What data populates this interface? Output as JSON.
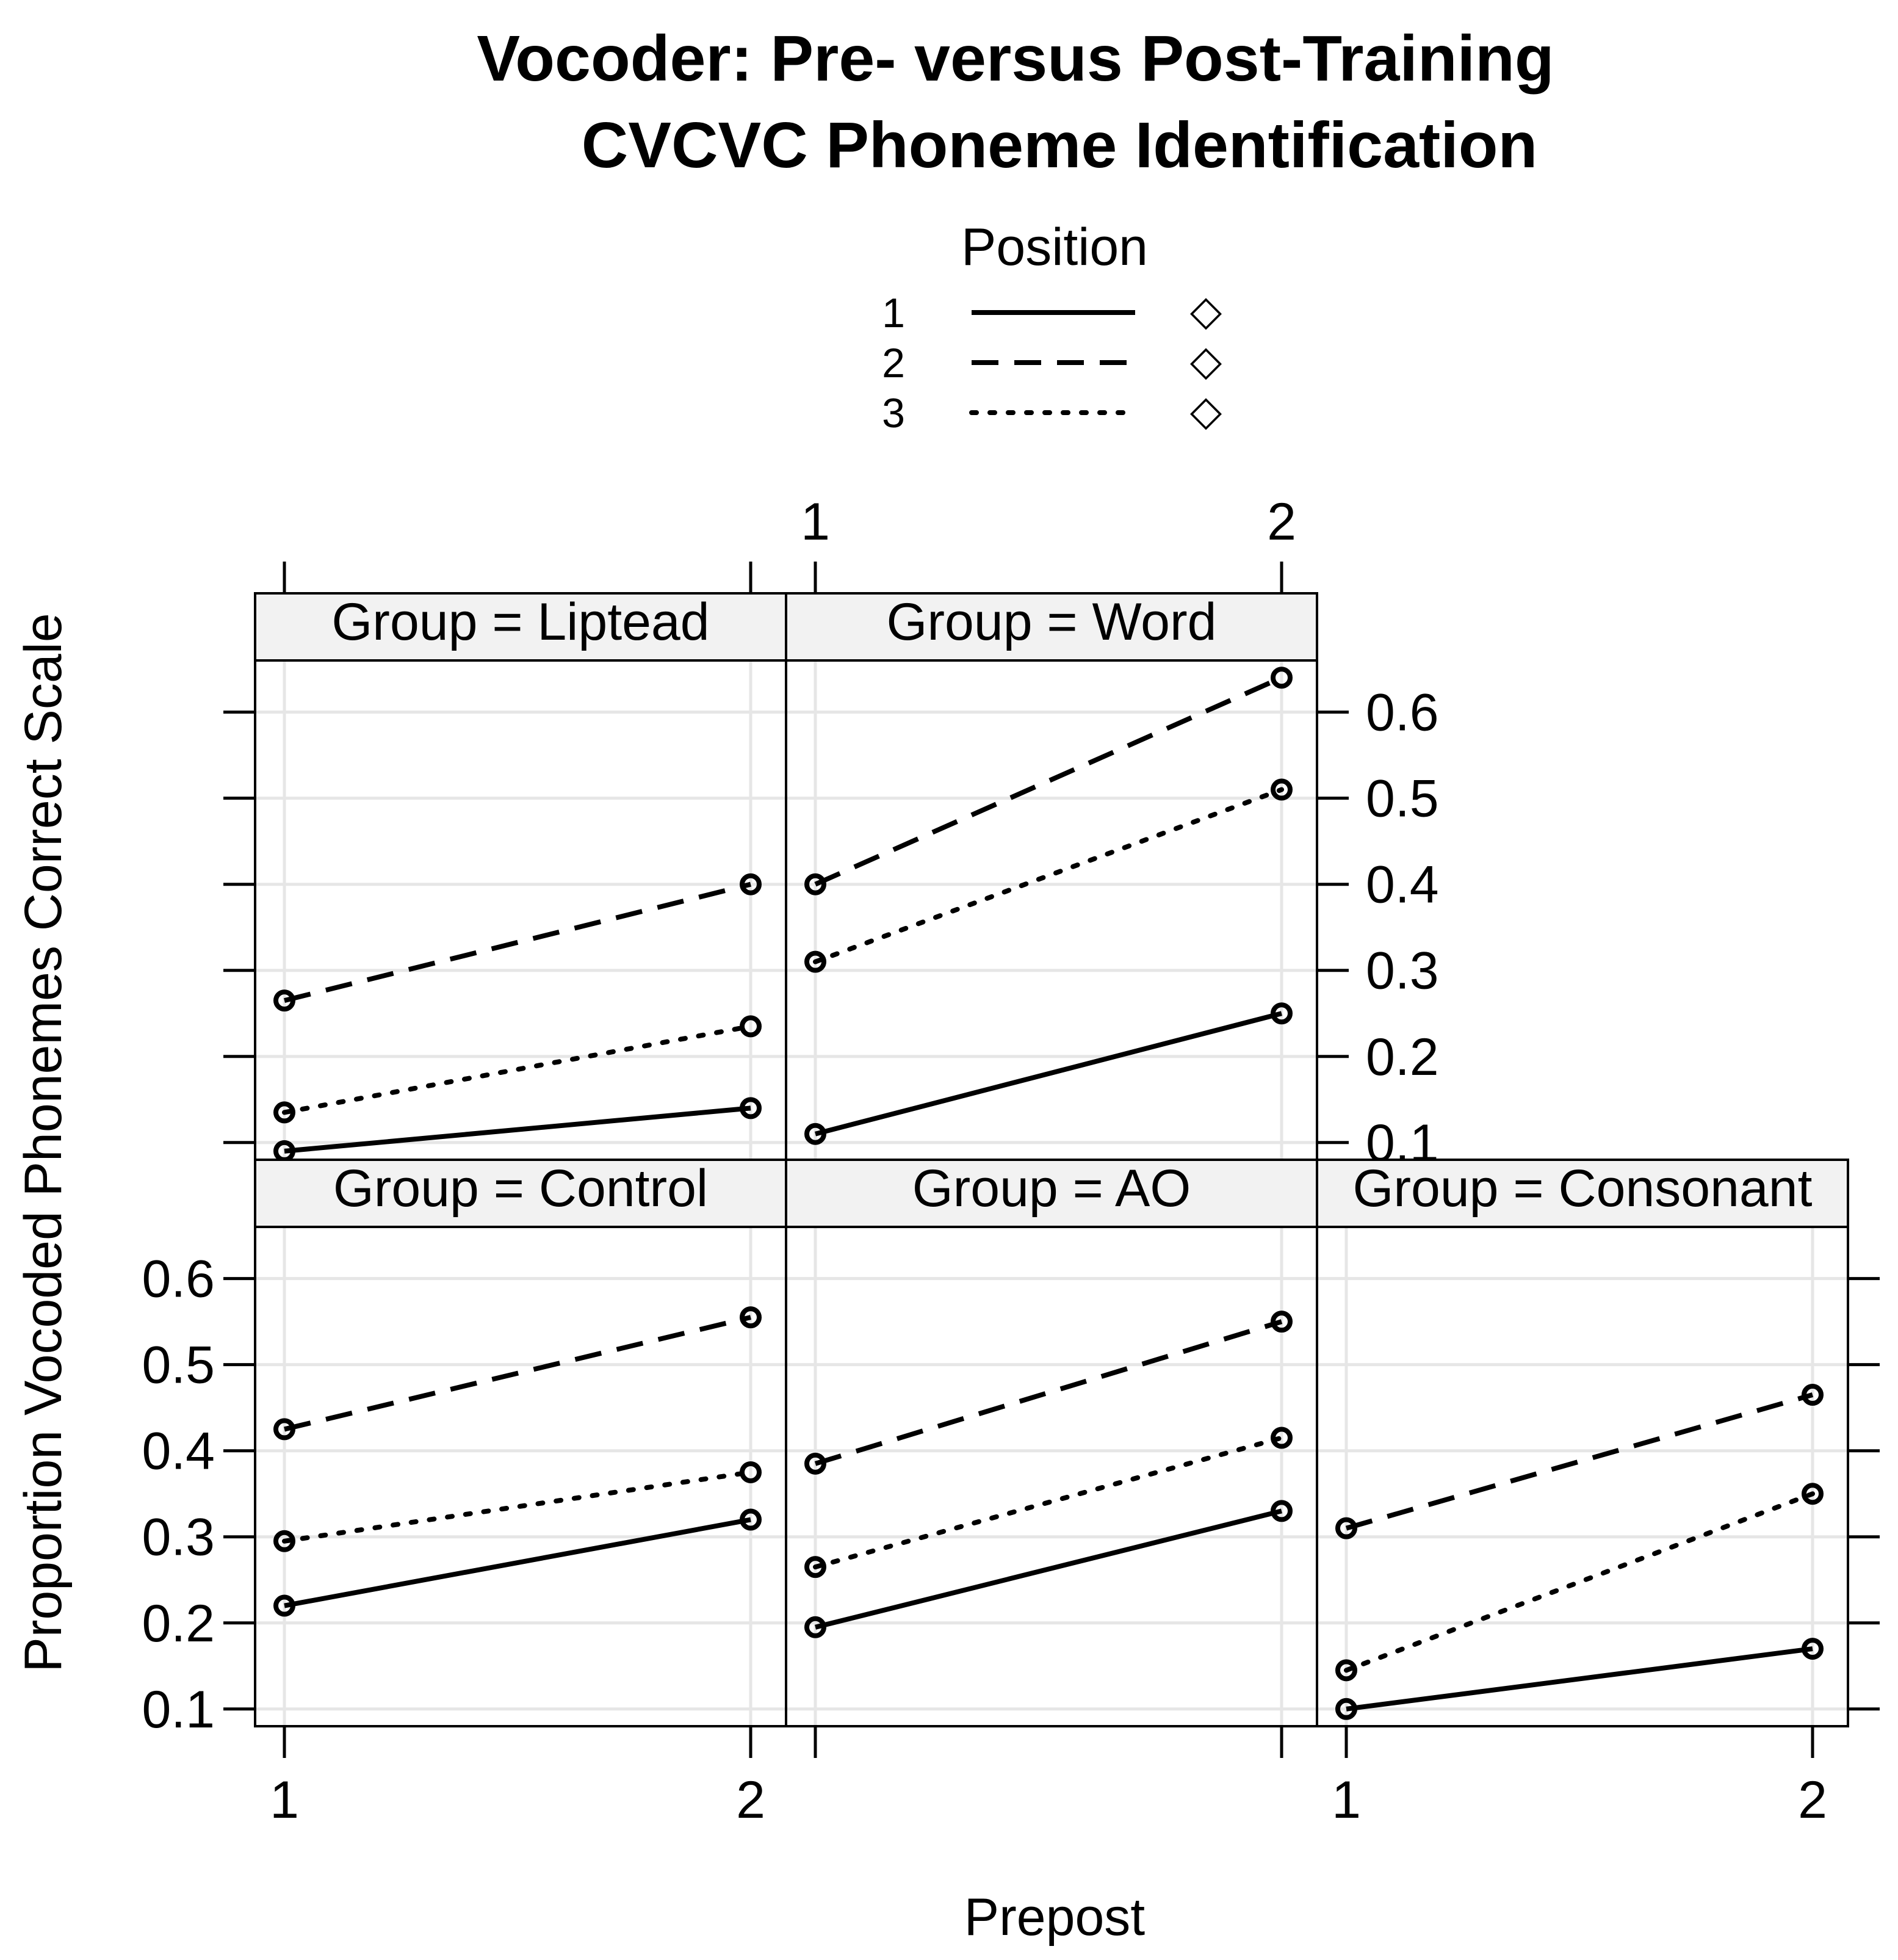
{
  "chart_data": {
    "type": "line",
    "title_lines": [
      "Vocoder: Pre- versus Post-Training",
      "CVCVC Phoneme Identification"
    ],
    "xlabel": "Prepost",
    "ylabel": "Proportion Vocoded Phonemes Correct Scale",
    "x": [
      1,
      2
    ],
    "x_tick_labels": [
      "1",
      "2"
    ],
    "ylim": [
      0.08,
      0.66
    ],
    "y_ticks": [
      0.1,
      0.2,
      0.3,
      0.4,
      0.5,
      0.6
    ],
    "y_tick_labels": [
      "0.1",
      "0.2",
      "0.3",
      "0.4",
      "0.5",
      "0.6"
    ],
    "grid": true,
    "legend": {
      "title": "Position",
      "placement": "top",
      "entries": [
        {
          "name": "1",
          "line": "solid",
          "symbol": "◇"
        },
        {
          "name": "2",
          "line": "dashed",
          "symbol": "◇"
        },
        {
          "name": "3",
          "line": "dotted",
          "symbol": "◇"
        }
      ]
    },
    "panels": [
      {
        "strip": "Group = Liptead",
        "series": [
          {
            "name": "1",
            "values": [
              0.09,
              0.14
            ]
          },
          {
            "name": "2",
            "values": [
              0.265,
              0.4
            ]
          },
          {
            "name": "3",
            "values": [
              0.135,
              0.235
            ]
          }
        ]
      },
      {
        "strip": "Group = Word",
        "series": [
          {
            "name": "1",
            "values": [
              0.11,
              0.25
            ]
          },
          {
            "name": "2",
            "values": [
              0.4,
              0.64
            ]
          },
          {
            "name": "3",
            "values": [
              0.31,
              0.51
            ]
          }
        ]
      },
      {
        "strip": "Group = Control",
        "series": [
          {
            "name": "1",
            "values": [
              0.22,
              0.32
            ]
          },
          {
            "name": "2",
            "values": [
              0.425,
              0.555
            ]
          },
          {
            "name": "3",
            "values": [
              0.295,
              0.375
            ]
          }
        ]
      },
      {
        "strip": "Group = AO",
        "series": [
          {
            "name": "1",
            "values": [
              0.195,
              0.33
            ]
          },
          {
            "name": "2",
            "values": [
              0.385,
              0.55
            ]
          },
          {
            "name": "3",
            "values": [
              0.265,
              0.415
            ]
          }
        ]
      },
      {
        "strip": "Group = Consonant",
        "series": [
          {
            "name": "1",
            "values": [
              0.1,
              0.17
            ]
          },
          {
            "name": "2",
            "values": [
              0.31,
              0.465
            ]
          },
          {
            "name": "3",
            "values": [
              0.145,
              0.35
            ]
          }
        ]
      }
    ]
  }
}
